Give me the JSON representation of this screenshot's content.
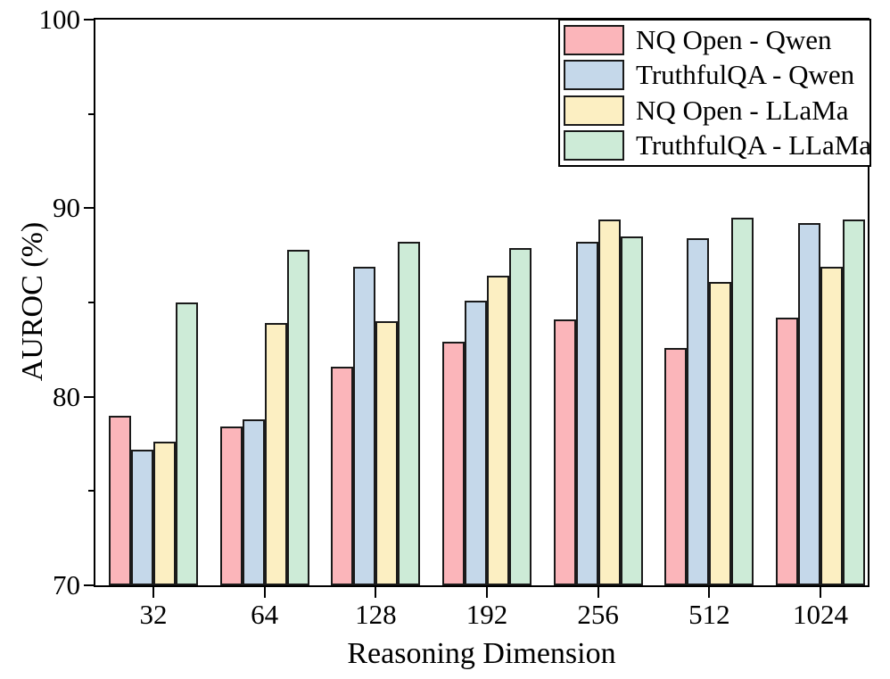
{
  "figure": {
    "background": "#ffffff",
    "text_color": "#000000"
  },
  "chart_data": {
    "type": "bar",
    "title": "",
    "xlabel": "Reasoning Dimension",
    "ylabel": "AUROC (%)",
    "ylim": [
      70,
      100
    ],
    "y_major_ticks": [
      70,
      80,
      90,
      100
    ],
    "y_minor_ticks": [
      75,
      85,
      95
    ],
    "grid": false,
    "legend_position": "upper right",
    "bar_edge_color": "#1a1a1a",
    "categories": [
      "32",
      "64",
      "128",
      "192",
      "256",
      "512",
      "1024"
    ],
    "series": [
      {
        "name": "NQ Open - Qwen",
        "color": "#FBB5BA",
        "values": [
          79.0,
          78.4,
          81.6,
          82.9,
          84.1,
          82.6,
          84.2
        ]
      },
      {
        "name": "TruthfulQA - Qwen",
        "color": "#C5D8EA",
        "values": [
          77.2,
          78.8,
          86.9,
          85.1,
          88.2,
          88.4,
          89.2
        ]
      },
      {
        "name": "NQ Open - LLaMa",
        "color": "#FCEFC2",
        "values": [
          77.6,
          83.9,
          84.0,
          86.4,
          89.4,
          86.1,
          86.9
        ]
      },
      {
        "name": "TruthfulQA - LLaMa",
        "color": "#CDEBD7",
        "values": [
          85.0,
          87.8,
          88.2,
          87.9,
          88.5,
          89.5,
          89.4
        ]
      }
    ]
  }
}
